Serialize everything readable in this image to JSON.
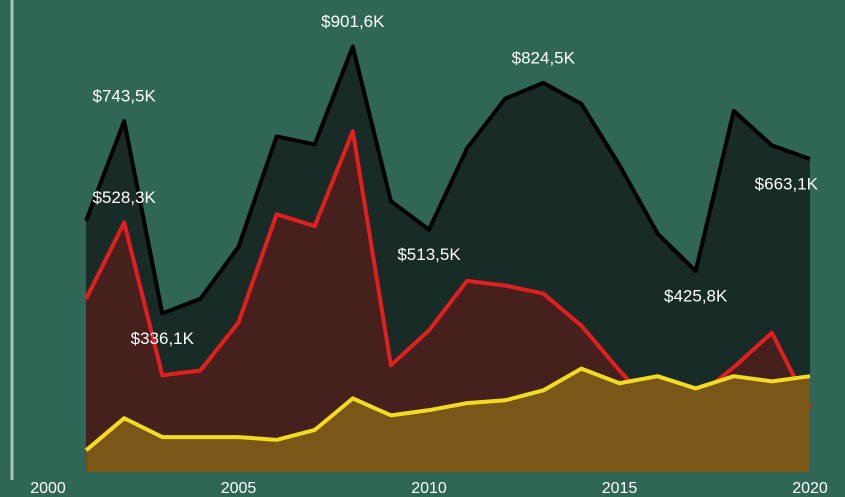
{
  "chart_data": {
    "type": "area",
    "x": [
      2001,
      2002,
      2003,
      2004,
      2005,
      2006,
      2007,
      2008,
      2009,
      2010,
      2011,
      2012,
      2013,
      2014,
      2015,
      2016,
      2017,
      2018,
      2019,
      2020
    ],
    "series": [
      {
        "color": "#000000",
        "fill": "#182b27",
        "values": [
          532,
          743.5,
          336.1,
          367,
          477,
          711,
          694,
          901.6,
          574,
          513.5,
          686,
          791,
          824.5,
          780,
          650,
          505,
          425.8,
          765,
          692,
          663.1
        ],
        "value_labels": [
          null,
          "$743,5K",
          "$336,1K",
          null,
          null,
          null,
          null,
          "$901,6K",
          null,
          "$513,5K",
          null,
          null,
          "$824,5K",
          null,
          null,
          null,
          "$425,8K",
          null,
          null,
          "$663,1K"
        ]
      },
      {
        "color": "#e21f1f",
        "fill": "#45201d",
        "values": [
          367,
          528.3,
          205,
          215,
          317,
          546,
          521,
          722,
          226,
          300,
          405,
          395,
          378,
          310,
          215,
          127,
          156,
          222,
          295,
          135
        ],
        "value_labels": [
          null,
          "$528,3K",
          null,
          null,
          null,
          null,
          null,
          null,
          null,
          null,
          null,
          null,
          null,
          null,
          null,
          null,
          null,
          null,
          null,
          null
        ]
      },
      {
        "color": "#f2dc22",
        "fill": "#7a5618",
        "values": [
          46,
          114,
          74,
          74,
          74,
          68,
          89,
          156,
          120,
          131,
          146,
          152,
          173,
          219,
          188,
          203,
          177,
          203,
          192,
          203
        ]
      }
    ],
    "xlim": [
      2000,
      2020
    ],
    "xticks": [
      2000,
      2005,
      2010,
      2015,
      2020
    ],
    "ylim": [
      0,
      1000
    ]
  }
}
